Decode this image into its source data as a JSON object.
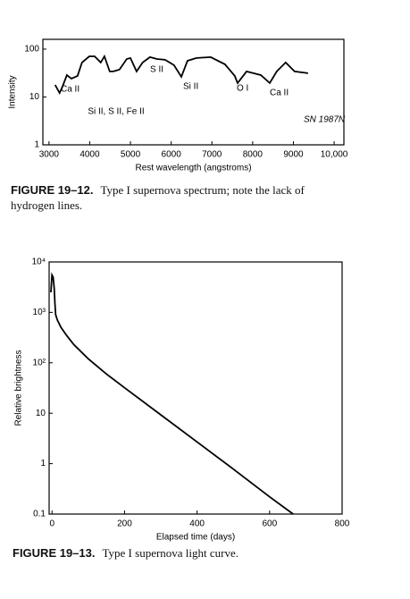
{
  "chart_data": [
    {
      "type": "line",
      "y_label": "Intensity",
      "x_label": "Rest wavelength (angstroms)",
      "log_y": true,
      "color": "#000000",
      "xlim": [
        2850,
        10240
      ],
      "ylim": [
        1,
        160
      ],
      "xticks": [
        3000,
        4000,
        5000,
        6000,
        7000,
        8000,
        9000,
        {
          "value": 10000,
          "label": "10,000"
        }
      ],
      "yticks": [
        1,
        10,
        100
      ],
      "x": [
        3150,
        3260,
        3330,
        3440,
        3550,
        3700,
        3810,
        3990,
        4120,
        4270,
        4360,
        4490,
        4580,
        4730,
        4910,
        5000,
        5150,
        5300,
        5480,
        5650,
        5850,
        6070,
        6250,
        6400,
        6620,
        6970,
        7320,
        7560,
        7630,
        7850,
        8200,
        8420,
        8590,
        8810,
        9030,
        9360
      ],
      "values": [
        17.9,
        12.1,
        16.4,
        28.7,
        24.2,
        27.5,
        52.5,
        70.8,
        70.8,
        52.5,
        70.8,
        34.1,
        34.1,
        37.2,
        62.2,
        65,
        34.1,
        52.5,
        67.9,
        62.2,
        59.7,
        46.1,
        26.4,
        57.1,
        65,
        67.9,
        48.1,
        27.5,
        19.5,
        34.1,
        28.7,
        19.5,
        34.1,
        52.5,
        34.1,
        31.3
      ],
      "annotations": [
        "Ca II",
        "Si II, S II, Fe II",
        "S II",
        "Si II",
        "O I",
        "Ca II",
        "SN 1987N"
      ],
      "caption_label": "FIGURE 19–12.",
      "caption": "Type I supernova spectrum; note the lack of hydrogen lines."
    },
    {
      "type": "line",
      "y_label": "Relative brightness",
      "x_label": "Elapsed time (days)",
      "log_y": true,
      "color": "#000000",
      "xlim": [
        -8,
        800
      ],
      "ylim": [
        0.1,
        10000
      ],
      "xticks": [
        0,
        200,
        400,
        600,
        800
      ],
      "yticks": [
        {
          "value": 0.1,
          "label": "0.1"
        },
        1,
        10,
        {
          "value": 100,
          "label": "10²"
        },
        {
          "value": 1000,
          "label": "10³"
        },
        {
          "value": 10000,
          "label": "10⁴"
        }
      ],
      "x": [
        -3,
        0,
        3,
        6,
        8,
        10,
        15,
        25,
        40,
        60,
        100,
        150,
        200,
        300,
        400,
        500,
        600,
        665
      ],
      "values": [
        2500,
        5500,
        5000,
        3000,
        1500,
        900,
        700,
        500,
        350,
        230,
        120,
        60,
        32,
        9.3,
        2.7,
        0.78,
        0.22,
        0.1
      ],
      "caption_label": "FIGURE 19–13.",
      "caption": "Type I supernova light curve."
    }
  ]
}
